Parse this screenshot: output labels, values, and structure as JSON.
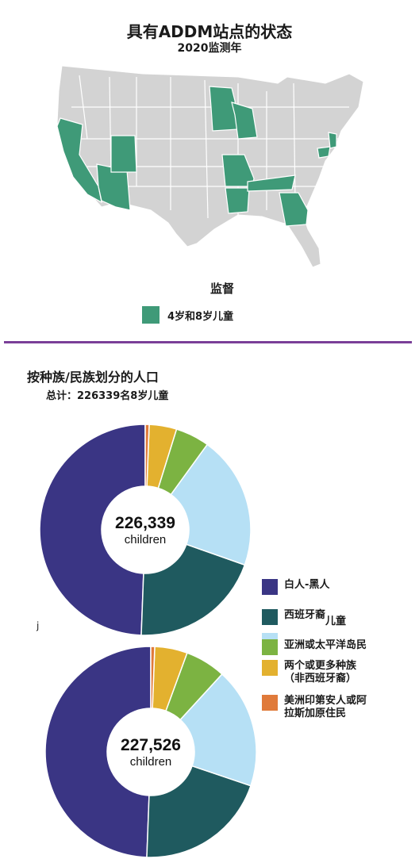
{
  "header": {
    "title": "具有ADDM站点的状态",
    "subtitle": "2020监测年"
  },
  "map": {
    "legend_title": "监督",
    "legend_label": "4岁和8岁儿童",
    "colors": {
      "monitored": "#3f9a78",
      "other": "#d3d3d3",
      "border": "#ffffff"
    },
    "monitored_states": [
      "California",
      "Arizona",
      "Utah",
      "Minnesota",
      "Wisconsin",
      "Missouri",
      "Arkansas",
      "Tennessee",
      "Georgia",
      "Maryland",
      "New Jersey"
    ]
  },
  "population": {
    "title": "按种族/民族划分的人口",
    "total": "总计：226339名8岁儿童"
  },
  "stray_mark": "j",
  "chart_data": [
    {
      "type": "donut",
      "center_value": "226,339",
      "center_label": "children",
      "categories": [
        "白人-黑人",
        "西班牙裔",
        "儿童",
        "亚洲或太平洋岛民",
        "两个或更多种族（非西班牙裔）",
        "美洲印第安人或阿拉斯加原住民"
      ],
      "values": [
        49.4,
        20.2,
        20.4,
        5.2,
        4.2,
        0.6
      ],
      "colors": [
        "#3a3584",
        "#1f5a5f",
        "#b6e0f5",
        "#7cb342",
        "#e3b12f",
        "#e07a3a"
      ]
    },
    {
      "type": "donut",
      "center_value": "227,526",
      "center_label": "children",
      "categories": [
        "白人-黑人",
        "西班牙裔",
        "儿童",
        "亚洲或太平洋岛民",
        "两个或更多种族（非西班牙裔）",
        "美洲印第安人或阿拉斯加原住民"
      ],
      "values": [
        49.4,
        20.4,
        18.4,
        6.2,
        5.0,
        0.6
      ],
      "colors": [
        "#3a3584",
        "#1f5a5f",
        "#b6e0f5",
        "#7cb342",
        "#e3b12f",
        "#e07a3a"
      ]
    }
  ],
  "legend": [
    {
      "label": "白人-黑人",
      "color": "#3a3584"
    },
    {
      "label": "西班牙裔",
      "color": "#1f5a5f",
      "extra": "儿童"
    },
    {
      "label": "亚洲或太平洋岛民",
      "color": "#7cb342"
    },
    {
      "label": "两个或更多种族\n（非西班牙裔）",
      "color": "#e3b12f"
    },
    {
      "label": "美洲印第安人或阿\n拉斯加原住民",
      "color": "#e07a3a"
    }
  ]
}
